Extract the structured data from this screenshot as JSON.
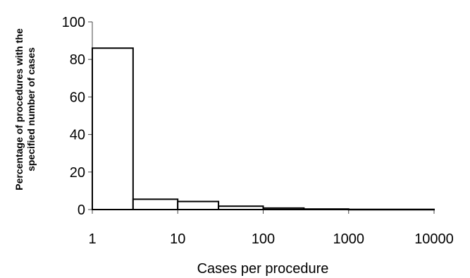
{
  "chart_data": {
    "type": "bar",
    "title": "",
    "xlabel": "Cases per procedure",
    "ylabel_lines": [
      "Percentage of procedures with the",
      "specified number of cases"
    ],
    "x_scale": "log",
    "xlim": [
      1,
      10000
    ],
    "ylim": [
      0,
      100
    ],
    "x_ticks": [
      1,
      10,
      100,
      1000,
      10000
    ],
    "x_tick_labels": [
      "1",
      "10",
      "100",
      "1000",
      "10000"
    ],
    "y_ticks": [
      0,
      20,
      40,
      60,
      80,
      100
    ],
    "y_tick_labels": [
      "0",
      "20",
      "40",
      "60",
      "80",
      "100"
    ],
    "grid": false,
    "bins": [
      {
        "from": 1,
        "to": 3,
        "value": 86
      },
      {
        "from": 3,
        "to": 10,
        "value": 5.5
      },
      {
        "from": 10,
        "to": 30,
        "value": 4.3
      },
      {
        "from": 30,
        "to": 100,
        "value": 1.8
      },
      {
        "from": 100,
        "to": 300,
        "value": 0.8
      },
      {
        "from": 300,
        "to": 1000,
        "value": 0.3
      },
      {
        "from": 1000,
        "to": 10000,
        "value": 0.1
      }
    ]
  }
}
